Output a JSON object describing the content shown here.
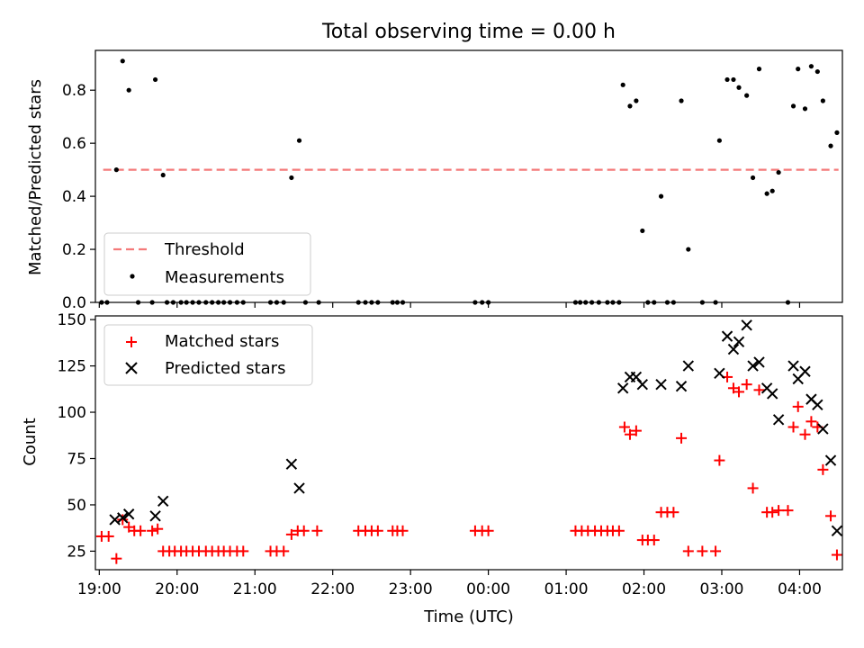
{
  "chart_data": [
    {
      "type": "scatter",
      "title": "Total observing time = 0.00 h",
      "xlabel": "",
      "ylabel": "Matched/Predicted stars",
      "ylim": [
        0,
        0.95
      ],
      "xlim_hours": [
        18.95,
        28.25
      ],
      "yticks": [
        "0.0",
        "0.2",
        "0.4",
        "0.6",
        "0.8"
      ],
      "legend_position": "lower-left",
      "threshold": {
        "name": "Threshold",
        "value": 0.5,
        "x_range_hours": [
          19.05,
          28.5
        ],
        "color": "#f47a7a"
      },
      "series": [
        {
          "name": "Measurements",
          "color": "#000000",
          "marker": "dot",
          "points": [
            [
              19.03,
              0
            ],
            [
              19.1,
              0
            ],
            [
              19.22,
              0.5
            ],
            [
              19.3,
              0.91
            ],
            [
              19.38,
              0.8
            ],
            [
              19.5,
              0
            ],
            [
              19.68,
              0
            ],
            [
              19.72,
              0.84
            ],
            [
              19.82,
              0.48
            ],
            [
              19.87,
              0
            ],
            [
              19.95,
              0
            ],
            [
              20.05,
              0
            ],
            [
              20.12,
              0
            ],
            [
              20.2,
              0
            ],
            [
              20.28,
              0
            ],
            [
              20.37,
              0
            ],
            [
              20.45,
              0
            ],
            [
              20.53,
              0
            ],
            [
              20.6,
              0
            ],
            [
              20.68,
              0
            ],
            [
              20.77,
              0
            ],
            [
              20.85,
              0
            ],
            [
              21.2,
              0
            ],
            [
              21.28,
              0
            ],
            [
              21.37,
              0
            ],
            [
              21.47,
              0.47
            ],
            [
              21.57,
              0.61
            ],
            [
              21.65,
              0
            ],
            [
              21.82,
              0
            ],
            [
              22.33,
              0
            ],
            [
              22.42,
              0
            ],
            [
              22.5,
              0
            ],
            [
              22.58,
              0
            ],
            [
              22.77,
              0
            ],
            [
              22.83,
              0
            ],
            [
              22.9,
              0
            ],
            [
              23.83,
              0
            ],
            [
              23.92,
              0
            ],
            [
              24.0,
              0
            ],
            [
              25.12,
              0
            ],
            [
              25.18,
              0
            ],
            [
              25.25,
              0
            ],
            [
              25.33,
              0
            ],
            [
              25.42,
              0
            ],
            [
              25.53,
              0
            ],
            [
              25.6,
              0
            ],
            [
              25.68,
              0
            ],
            [
              25.73,
              0.82
            ],
            [
              25.82,
              0.74
            ],
            [
              25.9,
              0.76
            ],
            [
              25.98,
              0.27
            ],
            [
              26.05,
              0
            ],
            [
              26.13,
              0
            ],
            [
              26.22,
              0.4
            ],
            [
              26.3,
              0
            ],
            [
              26.38,
              0
            ],
            [
              26.48,
              0.76
            ],
            [
              26.57,
              0.2
            ],
            [
              26.75,
              0
            ],
            [
              26.92,
              0
            ],
            [
              26.97,
              0.61
            ],
            [
              27.07,
              0.84
            ],
            [
              27.15,
              0.84
            ],
            [
              27.22,
              0.81
            ],
            [
              27.32,
              0.78
            ],
            [
              27.4,
              0.47
            ],
            [
              27.48,
              0.88
            ],
            [
              27.58,
              0.41
            ],
            [
              27.65,
              0.42
            ],
            [
              27.73,
              0.49
            ],
            [
              27.85,
              0
            ],
            [
              27.92,
              0.74
            ],
            [
              27.98,
              0.88
            ],
            [
              28.07,
              0.73
            ],
            [
              28.15,
              0.89
            ],
            [
              28.23,
              0.87
            ],
            [
              28.3,
              0.76
            ],
            [
              28.4,
              0.59
            ],
            [
              28.48,
              0.64
            ]
          ]
        }
      ]
    },
    {
      "type": "scatter",
      "title": "",
      "xlabel": "Time (UTC)",
      "ylabel": "Count",
      "ylim": [
        15,
        152
      ],
      "xlim_hours": [
        18.95,
        28.25
      ],
      "yticks": [
        "25",
        "50",
        "75",
        "100",
        "125",
        "150"
      ],
      "xticks": [
        "19:00",
        "20:00",
        "21:00",
        "22:00",
        "23:00",
        "00:00",
        "01:00",
        "02:00",
        "03:00",
        "04:00"
      ],
      "legend_position": "top-left",
      "series": [
        {
          "name": "Matched stars",
          "color": "#ff0000",
          "marker": "plus",
          "points": [
            [
              19.03,
              33
            ],
            [
              19.12,
              33
            ],
            [
              19.22,
              21
            ],
            [
              19.3,
              42
            ],
            [
              19.38,
              38
            ],
            [
              19.45,
              36
            ],
            [
              19.53,
              36
            ],
            [
              19.68,
              36
            ],
            [
              19.75,
              37
            ],
            [
              19.82,
              25
            ],
            [
              19.9,
              25
            ],
            [
              19.97,
              25
            ],
            [
              20.05,
              25
            ],
            [
              20.12,
              25
            ],
            [
              20.2,
              25
            ],
            [
              20.28,
              25
            ],
            [
              20.37,
              25
            ],
            [
              20.45,
              25
            ],
            [
              20.53,
              25
            ],
            [
              20.6,
              25
            ],
            [
              20.68,
              25
            ],
            [
              20.77,
              25
            ],
            [
              20.85,
              25
            ],
            [
              21.2,
              25
            ],
            [
              21.28,
              25
            ],
            [
              21.37,
              25
            ],
            [
              21.47,
              34
            ],
            [
              21.55,
              36
            ],
            [
              21.63,
              36
            ],
            [
              21.8,
              36
            ],
            [
              22.33,
              36
            ],
            [
              22.42,
              36
            ],
            [
              22.5,
              36
            ],
            [
              22.58,
              36
            ],
            [
              22.77,
              36
            ],
            [
              22.83,
              36
            ],
            [
              22.9,
              36
            ],
            [
              23.83,
              36
            ],
            [
              23.92,
              36
            ],
            [
              24.0,
              36
            ],
            [
              25.12,
              36
            ],
            [
              25.2,
              36
            ],
            [
              25.28,
              36
            ],
            [
              25.37,
              36
            ],
            [
              25.45,
              36
            ],
            [
              25.53,
              36
            ],
            [
              25.6,
              36
            ],
            [
              25.68,
              36
            ],
            [
              25.75,
              92
            ],
            [
              25.82,
              88
            ],
            [
              25.9,
              90
            ],
            [
              25.98,
              31
            ],
            [
              26.05,
              31
            ],
            [
              26.13,
              31
            ],
            [
              26.22,
              46
            ],
            [
              26.3,
              46
            ],
            [
              26.38,
              46
            ],
            [
              26.48,
              86
            ],
            [
              26.57,
              25
            ],
            [
              26.75,
              25
            ],
            [
              26.92,
              25
            ],
            [
              26.97,
              74
            ],
            [
              27.07,
              119
            ],
            [
              27.15,
              113
            ],
            [
              27.22,
              111
            ],
            [
              27.32,
              115
            ],
            [
              27.4,
              59
            ],
            [
              27.48,
              112
            ],
            [
              27.58,
              46
            ],
            [
              27.65,
              46
            ],
            [
              27.73,
              47
            ],
            [
              27.85,
              47
            ],
            [
              27.92,
              92
            ],
            [
              27.98,
              103
            ],
            [
              28.07,
              88
            ],
            [
              28.15,
              95
            ],
            [
              28.23,
              92
            ],
            [
              28.3,
              69
            ],
            [
              28.4,
              44
            ],
            [
              28.48,
              23
            ]
          ]
        },
        {
          "name": "Predicted stars",
          "color": "#000000",
          "marker": "x",
          "points": [
            [
              19.2,
              42
            ],
            [
              19.3,
              43
            ],
            [
              19.38,
              45
            ],
            [
              19.72,
              44
            ],
            [
              19.82,
              52
            ],
            [
              21.47,
              72
            ],
            [
              21.57,
              59
            ],
            [
              25.73,
              113
            ],
            [
              25.82,
              119
            ],
            [
              25.9,
              119
            ],
            [
              25.98,
              115
            ],
            [
              26.22,
              115
            ],
            [
              26.48,
              114
            ],
            [
              26.57,
              125
            ],
            [
              26.97,
              121
            ],
            [
              27.07,
              141
            ],
            [
              27.15,
              134
            ],
            [
              27.22,
              138
            ],
            [
              27.32,
              147
            ],
            [
              27.4,
              125
            ],
            [
              27.48,
              127
            ],
            [
              27.58,
              113
            ],
            [
              27.65,
              110
            ],
            [
              27.73,
              96
            ],
            [
              27.92,
              125
            ],
            [
              27.98,
              118
            ],
            [
              28.07,
              122
            ],
            [
              28.15,
              107
            ],
            [
              28.23,
              104
            ],
            [
              28.3,
              91
            ],
            [
              28.4,
              74
            ],
            [
              28.48,
              36
            ]
          ]
        }
      ]
    }
  ]
}
